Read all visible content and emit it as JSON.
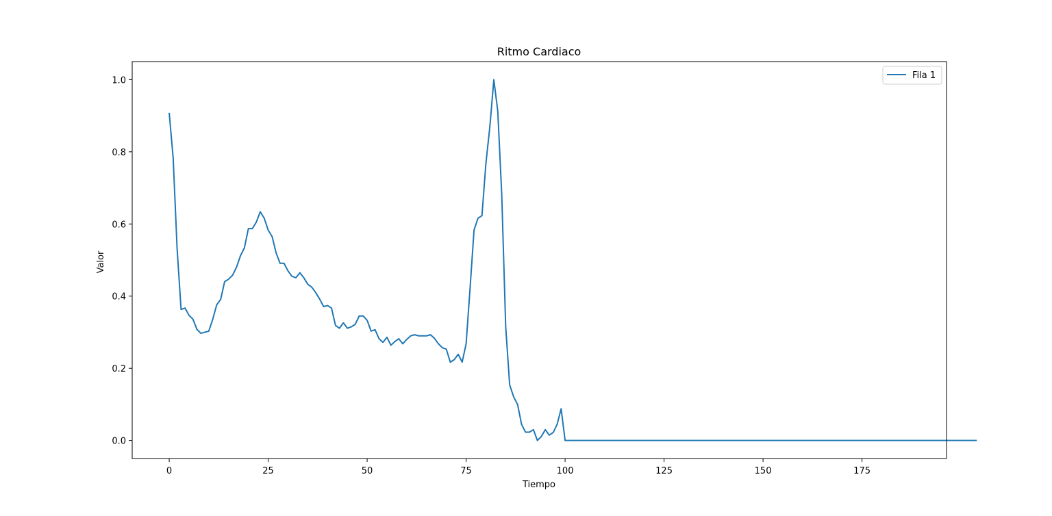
{
  "chart_data": {
    "type": "line",
    "title": "Ritmo Cardiaco",
    "xlabel": "Tiempo",
    "ylabel": "Valor",
    "xlim": [
      -9.35,
      196.35
    ],
    "ylim": [
      -0.05,
      1.05
    ],
    "xticks": [
      0,
      25,
      50,
      75,
      100,
      125,
      150,
      175
    ],
    "yticks": [
      0.0,
      0.2,
      0.4,
      0.6,
      0.8,
      1.0
    ],
    "xtick_labels": [
      "0",
      "25",
      "50",
      "75",
      "100",
      "125",
      "150",
      "175"
    ],
    "ytick_labels": [
      "0.0",
      "0.2",
      "0.4",
      "0.6",
      "0.8",
      "1.0"
    ],
    "grid": false,
    "legend_position": "top-right",
    "series": [
      {
        "name": "Fila 1",
        "color": "#1f77b4",
        "x_start": 0,
        "x_step": 1,
        "values": [
          0.908,
          0.783,
          0.531,
          0.363,
          0.367,
          0.347,
          0.336,
          0.308,
          0.297,
          0.3,
          0.303,
          0.336,
          0.376,
          0.391,
          0.44,
          0.447,
          0.458,
          0.48,
          0.512,
          0.534,
          0.587,
          0.587,
          0.605,
          0.634,
          0.616,
          0.583,
          0.565,
          0.52,
          0.491,
          0.491,
          0.47,
          0.455,
          0.451,
          0.465,
          0.451,
          0.433,
          0.425,
          0.41,
          0.392,
          0.371,
          0.374,
          0.367,
          0.319,
          0.311,
          0.326,
          0.311,
          0.315,
          0.322,
          0.345,
          0.345,
          0.333,
          0.303,
          0.307,
          0.282,
          0.272,
          0.286,
          0.264,
          0.274,
          0.282,
          0.268,
          0.28,
          0.29,
          0.293,
          0.29,
          0.29,
          0.29,
          0.293,
          0.283,
          0.268,
          0.257,
          0.253,
          0.217,
          0.224,
          0.239,
          0.217,
          0.268,
          0.422,
          0.583,
          0.616,
          0.623,
          0.768,
          0.87,
          1.0,
          0.912,
          0.681,
          0.315,
          0.154,
          0.121,
          0.1,
          0.045,
          0.023,
          0.023,
          0.03,
          0.0,
          0.011,
          0.03,
          0.015,
          0.022,
          0.045,
          0.088,
          0.0,
          0,
          0,
          0,
          0,
          0,
          0,
          0,
          0,
          0,
          0,
          0,
          0,
          0,
          0,
          0,
          0,
          0,
          0,
          0,
          0,
          0,
          0,
          0,
          0,
          0,
          0,
          0,
          0,
          0,
          0,
          0,
          0,
          0,
          0,
          0,
          0,
          0,
          0,
          0,
          0,
          0,
          0,
          0,
          0,
          0,
          0,
          0,
          0,
          0,
          0,
          0,
          0,
          0,
          0,
          0,
          0,
          0,
          0,
          0,
          0,
          0,
          0,
          0,
          0,
          0,
          0,
          0,
          0,
          0,
          0,
          0,
          0,
          0,
          0,
          0,
          0,
          0,
          0,
          0,
          0,
          0,
          0,
          0,
          0,
          0,
          0,
          0,
          0,
          0,
          0,
          0,
          0,
          0,
          0,
          0,
          0,
          0,
          0,
          0,
          0,
          0,
          0,
          0,
          0
        ]
      }
    ]
  }
}
